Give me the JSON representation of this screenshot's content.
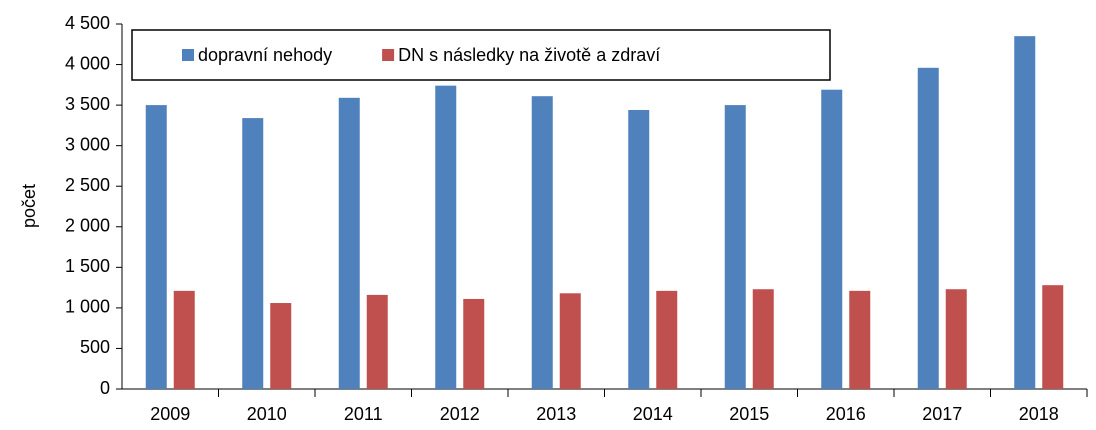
{
  "chart_data": {
    "type": "bar",
    "y_label": "počet",
    "categories": [
      "2009",
      "2010",
      "2011",
      "2012",
      "2013",
      "2014",
      "2015",
      "2016",
      "2017",
      "2018"
    ],
    "series": [
      {
        "name": "dopravní nehody",
        "color": "#4f81bd",
        "values": [
          3500,
          3340,
          3590,
          3740,
          3610,
          3440,
          3500,
          3690,
          3960,
          4350
        ]
      },
      {
        "name": "DN s následky na životě a zdraví",
        "color": "#c0504d",
        "values": [
          1210,
          1060,
          1160,
          1110,
          1180,
          1210,
          1230,
          1210,
          1230,
          1280
        ]
      }
    ],
    "ylim": [
      0,
      4500
    ],
    "yticks": [
      0,
      500,
      {
        "value": 1000,
        "label": "1 000"
      },
      {
        "value": 1500,
        "label": "1 500"
      },
      {
        "value": 2000,
        "label": "2 000"
      },
      {
        "value": 2500,
        "label": "2 500"
      },
      {
        "value": 3000,
        "label": "3 000"
      },
      {
        "value": 3500,
        "label": "3 500"
      },
      {
        "value": 4000,
        "label": "4 000"
      },
      {
        "value": 4500,
        "label": "4 500"
      }
    ],
    "legend": "top-left"
  }
}
